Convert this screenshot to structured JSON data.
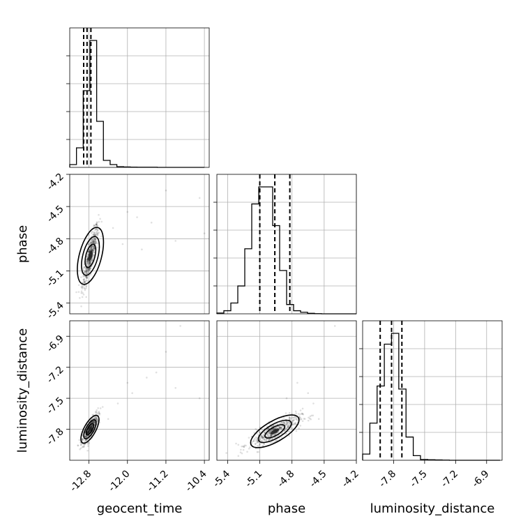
{
  "chart_data": {
    "type": "corner",
    "parameters": [
      "geocent_time",
      "phase",
      "luminosity_distance"
    ],
    "axis_labels": [
      "geocent_time",
      "phase",
      "luminosity_distance"
    ],
    "grid": true,
    "ranges": {
      "geocent_time": [
        -13.2,
        -10.3
      ],
      "phase": [
        -5.5,
        -4.2
      ],
      "luminosity_distance": [
        -8.1,
        -6.75
      ]
    },
    "ticks": {
      "geocent_time": [
        "-12.8",
        "-12.0",
        "-11.2",
        "-10.4"
      ],
      "phase": [
        "-5.4",
        "-5.1",
        "-4.8",
        "-4.5",
        "-4.2"
      ],
      "luminosity_distance": [
        "-7.8",
        "-7.5",
        "-7.2",
        "-6.9"
      ]
    },
    "tick_values": {
      "geocent_time": [
        -12.8,
        -12.0,
        -11.2,
        -10.4
      ],
      "phase": [
        -5.4,
        -5.1,
        -4.8,
        -4.5,
        -4.2
      ],
      "luminosity_distance": [
        -7.8,
        -7.5,
        -7.2,
        -6.9
      ]
    },
    "histograms": {
      "geocent_time": {
        "edges": [
          -13.2,
          -13.06,
          -12.92,
          -12.78,
          -12.64,
          -12.5,
          -12.36,
          -12.22,
          -12.08,
          -11.94,
          -11.8,
          -11.66,
          -11.52,
          -11.38,
          -11.24,
          -11.1,
          -10.96,
          -10.82,
          -10.68,
          -10.54,
          -10.4
        ],
        "counts": [
          0.02,
          0.14,
          0.55,
          0.91,
          0.33,
          0.05,
          0.02,
          0.005,
          0.003,
          0.002,
          0.001,
          0.001,
          0.001,
          0,
          0,
          0,
          0,
          0,
          0,
          0
        ],
        "quantiles": [
          -12.91,
          -12.84,
          -12.76
        ]
      },
      "phase": {
        "edges": [
          -5.5,
          -5.435,
          -5.37,
          -5.305,
          -5.24,
          -5.175,
          -5.11,
          -5.045,
          -4.98,
          -4.915,
          -4.85,
          -4.785,
          -4.72,
          -4.655,
          -4.59,
          -4.525,
          -4.46,
          -4.395,
          -4.33,
          -4.265,
          -4.2
        ],
        "counts": [
          0.005,
          0.02,
          0.07,
          0.18,
          0.42,
          0.71,
          0.82,
          0.82,
          0.57,
          0.28,
          0.06,
          0.02,
          0.01,
          0.003,
          0.001,
          0,
          0,
          0,
          0,
          0
        ],
        "quantiles": [
          -5.1,
          -4.96,
          -4.82
        ]
      },
      "luminosity_distance": {
        "edges": [
          -8.1,
          -8.03,
          -7.96,
          -7.89,
          -7.82,
          -7.75,
          -7.68,
          -7.61,
          -7.54,
          -7.47,
          -7.4,
          -7.33,
          -7.26,
          -7.19,
          -7.12,
          -7.05,
          -6.98,
          -6.91,
          -6.84,
          -6.77
        ],
        "counts": [
          0.04,
          0.24,
          0.48,
          0.75,
          0.82,
          0.46,
          0.15,
          0.03,
          0.005,
          0.003,
          0.002,
          0.001,
          0,
          0,
          0,
          0,
          0,
          0,
          0
        ],
        "quantiles": [
          -7.93,
          -7.82,
          -7.72
        ]
      }
    },
    "scatter_2d": [
      {
        "x": "geocent_time",
        "y": "phase",
        "mean": [
          -12.77,
          -4.96
        ],
        "sd": [
          0.07,
          0.12
        ],
        "corr": 0.85,
        "outliers": [
          [
            -11.2,
            -4.35
          ],
          [
            -10.5,
            -4.42
          ],
          [
            -11.7,
            -4.9
          ],
          [
            -11.0,
            -4.82
          ],
          [
            -12.0,
            -4.55
          ],
          [
            -11.5,
            -4.65
          ],
          [
            -12.3,
            -4.7
          ],
          [
            -10.4,
            -4.75
          ],
          [
            -11.8,
            -4.6
          ],
          [
            -12.1,
            -4.85
          ]
        ]
      },
      {
        "x": "geocent_time",
        "y": "luminosity_distance",
        "mean": [
          -12.78,
          -7.8
        ],
        "sd": [
          0.07,
          0.06
        ],
        "corr": 0.8,
        "outliers": [
          [
            -10.9,
            -6.8
          ],
          [
            -11.6,
            -7.3
          ],
          [
            -11.2,
            -7.05
          ],
          [
            -12.2,
            -7.55
          ],
          [
            -10.5,
            -7.5
          ],
          [
            -11.9,
            -7.45
          ],
          [
            -11.4,
            -7.25
          ],
          [
            -12.0,
            -7.35
          ],
          [
            -11.0,
            -7.4
          ],
          [
            -12.4,
            -7.7
          ]
        ]
      },
      {
        "x": "phase",
        "y": "luminosity_distance",
        "mean": [
          -4.96,
          -7.82
        ],
        "sd": [
          0.1,
          0.06
        ],
        "corr": 0.8,
        "outliers": [
          [
            -4.6,
            -7.55
          ],
          [
            -4.7,
            -7.6
          ],
          [
            -4.5,
            -7.2
          ],
          [
            -4.65,
            -7.45
          ],
          [
            -4.55,
            -7.7
          ],
          [
            -4.75,
            -7.35
          ],
          [
            -4.4,
            -6.8
          ],
          [
            -4.85,
            -7.5
          ],
          [
            -5.3,
            -7.95
          ],
          [
            -4.7,
            -7.65
          ]
        ]
      }
    ]
  }
}
